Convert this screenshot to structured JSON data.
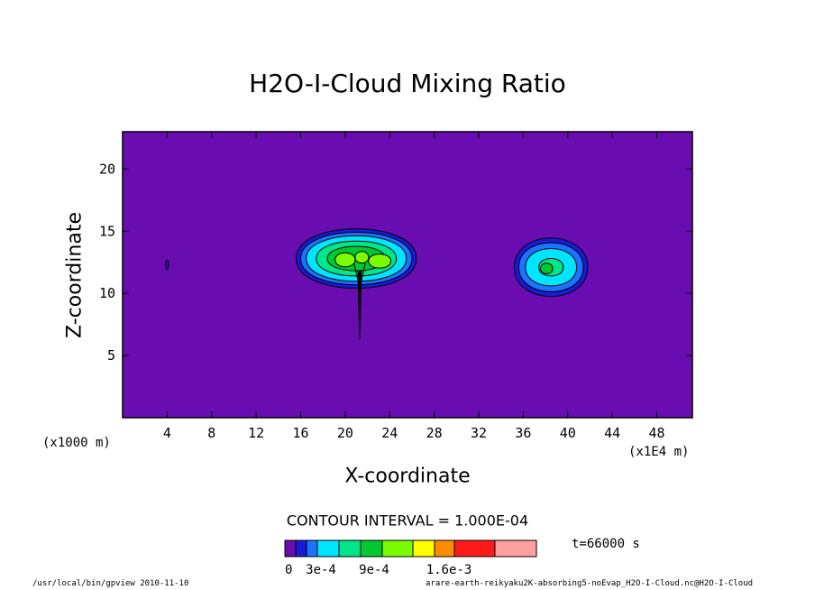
{
  "chart_data": {
    "type": "heatmap",
    "title": "H2O-I-Cloud Mixing Ratio",
    "xlabel": "X-coordinate",
    "ylabel": "Z-coordinate",
    "x_unit_left": "(x1000 m)",
    "x_unit_right": "(x1E4 m)",
    "xlim": [
      0,
      51.2
    ],
    "ylim": [
      0,
      23
    ],
    "x_ticks": [
      4,
      8,
      12,
      16,
      20,
      24,
      28,
      32,
      36,
      40,
      44,
      48
    ],
    "y_ticks": [
      5,
      10,
      15,
      20
    ],
    "contour_interval_label": "CONTOUR INTERVAL = 1.000E-04",
    "time_label": "t=66000 s",
    "colorbar": {
      "colors": [
        "#6a0db0",
        "#1a1ad6",
        "#1a74ff",
        "#00e5ff",
        "#00e68a",
        "#00c832",
        "#7cfc00",
        "#ffff00",
        "#ff8c00",
        "#ff1a1a",
        "#ffa0a0"
      ],
      "tick_labels": [
        "0",
        "3e-4",
        "9e-4",
        "1.6e-3"
      ]
    },
    "features": [
      {
        "name": "main-cloud",
        "x_center": 21,
        "z_center": 12.8,
        "x_range": [
          15.5,
          26.5
        ],
        "z_range": [
          10.3,
          15.4
        ],
        "max_level": 6
      },
      {
        "name": "right-cloud",
        "x_center": 38.5,
        "z_center": 12.1,
        "x_range": [
          35.5,
          42
        ],
        "z_range": [
          9.8,
          14.8
        ],
        "max_level": 5
      },
      {
        "name": "stem",
        "x_center": 21.3,
        "z_range": [
          6.3,
          11.5
        ]
      },
      {
        "name": "small-blob",
        "x_center": 4,
        "z_center": 12.3
      }
    ]
  },
  "footer": {
    "left": "/usr/local/bin/gpview  2010-11-10",
    "right": "arare-earth-reikyaku2K-absorbing5-noEvap_H2O-I-Cloud.nc@H2O-I-Cloud"
  }
}
